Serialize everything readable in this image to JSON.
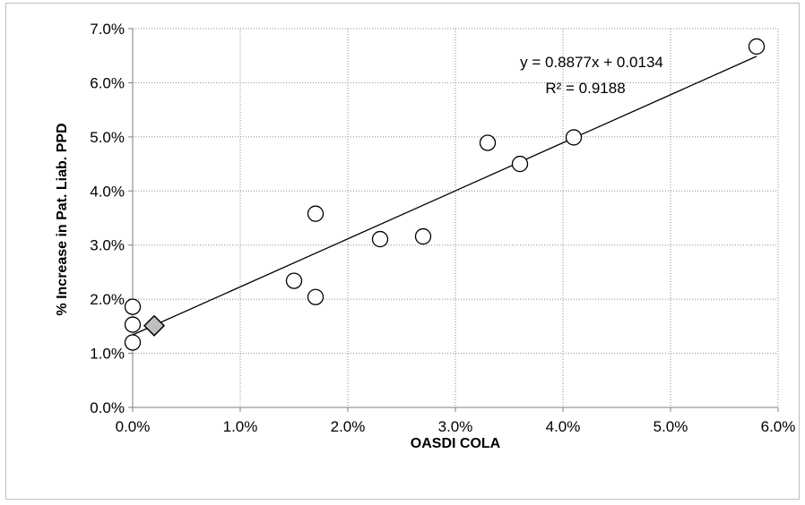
{
  "chart_data": {
    "type": "scatter",
    "xlabel": "OASDI COLA",
    "ylabel": "% Increase in Pat. Liab. PPD",
    "xlim": [
      0,
      0.06
    ],
    "ylim": [
      0,
      0.07
    ],
    "x_ticks": [
      "0.0%",
      "1.0%",
      "2.0%",
      "3.0%",
      "4.0%",
      "5.0%",
      "6.0%"
    ],
    "y_ticks": [
      "0.0%",
      "1.0%",
      "2.0%",
      "3.0%",
      "4.0%",
      "5.0%",
      "6.0%",
      "7.0%"
    ],
    "grid": true,
    "series": [
      {
        "marker": "circle",
        "points": [
          {
            "x": 0.0,
            "y": 0.0186
          },
          {
            "x": 0.0,
            "y": 0.0153
          },
          {
            "x": 0.0,
            "y": 0.012
          },
          {
            "x": 0.015,
            "y": 0.0234
          },
          {
            "x": 0.017,
            "y": 0.0358
          },
          {
            "x": 0.017,
            "y": 0.0204
          },
          {
            "x": 0.023,
            "y": 0.0311
          },
          {
            "x": 0.027,
            "y": 0.0316
          },
          {
            "x": 0.033,
            "y": 0.0489
          },
          {
            "x": 0.036,
            "y": 0.045
          },
          {
            "x": 0.041,
            "y": 0.0499
          },
          {
            "x": 0.058,
            "y": 0.0667
          }
        ]
      },
      {
        "marker": "diamond",
        "points": [
          {
            "x": 0.002,
            "y": 0.0151
          }
        ]
      }
    ],
    "trendline": {
      "slope": 0.8877,
      "intercept": 0.0134,
      "x_range": [
        0,
        0.058
      ],
      "equation": "y = 0.8877x + 0.0134",
      "r_squared": "R² = 0.9188"
    },
    "colors": {
      "marker_fill": "#ffffff",
      "marker_stroke": "#000000",
      "diamond_fill": "#bfbfbf",
      "grid": "#8c8c8c",
      "frame": "#bfbfbf"
    }
  }
}
